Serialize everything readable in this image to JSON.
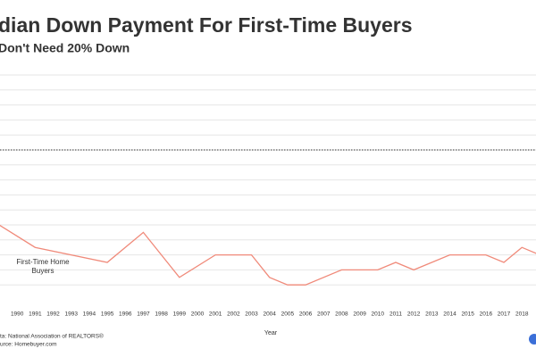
{
  "chart_data": {
    "type": "line",
    "title": "dian Down Payment For First-Time Buyers",
    "subtitle": "Don't Need 20% Down",
    "x_label": "Year",
    "annotation": "First-Time Home Buyers",
    "sources": [
      "ta: National Association of REALTORS®",
      "urce: Homebuyer.com"
    ],
    "x": [
      1989,
      1991,
      1995,
      1997,
      1999,
      2001,
      2003,
      2004,
      2005,
      2006,
      2008,
      2010,
      2011,
      2012,
      2014,
      2016,
      2017,
      2018,
      2019
    ],
    "series": [
      {
        "name": "First-Time Home Buyers",
        "color": "#f08a7a",
        "values": [
          10,
          7,
          5,
          9,
          3,
          6,
          6,
          3,
          2,
          2,
          4,
          4,
          5,
          4,
          6,
          6,
          5,
          7,
          6
        ]
      }
    ],
    "xlim": [
      1989,
      2019
    ],
    "xticks": [
      1990,
      1991,
      1992,
      1993,
      1994,
      1995,
      1996,
      1997,
      1998,
      1999,
      2000,
      2001,
      2002,
      2003,
      2004,
      2005,
      2006,
      2007,
      2008,
      2009,
      2010,
      2011,
      2012,
      2013,
      2014,
      2015,
      2016,
      2017,
      2018
    ],
    "ylim": [
      0,
      30
    ],
    "yticks": [
      2,
      4,
      6,
      8,
      10,
      12,
      14,
      16,
      18,
      20,
      22,
      24,
      26,
      28,
      30
    ],
    "reference_line": 20,
    "grid": true
  }
}
